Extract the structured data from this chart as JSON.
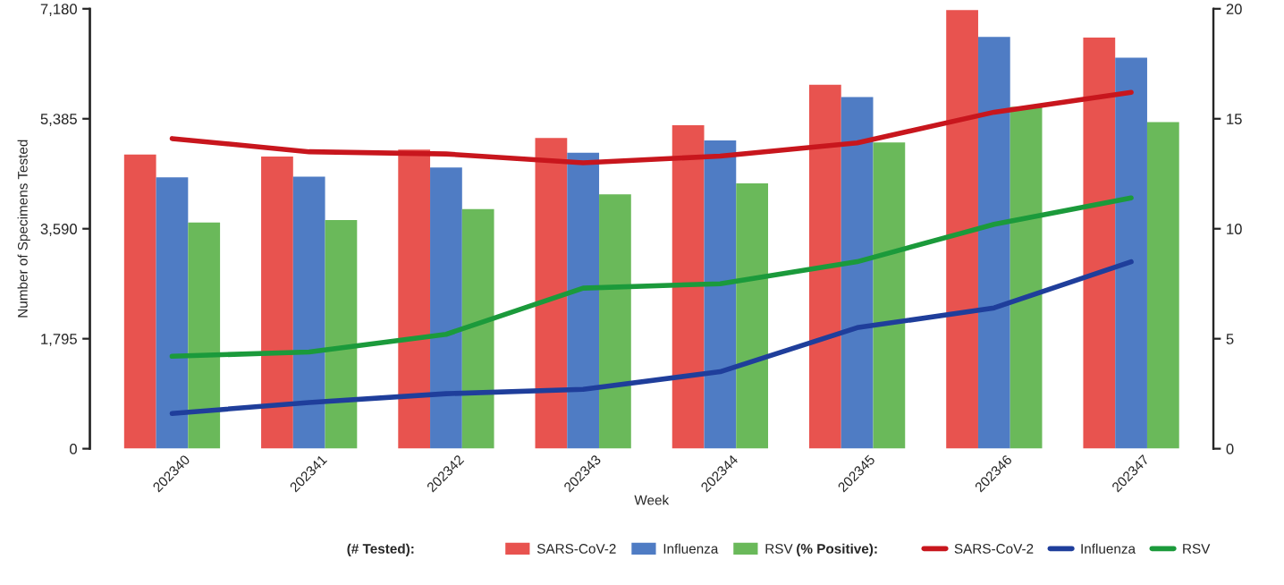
{
  "chart_data": {
    "type": "bar",
    "xlabel": "Week",
    "ylabel": "Number of Specimens Tested",
    "legend_title": "(# Tested):",
    "annotations": [
      "(% Positive):"
    ],
    "categories": [
      "202340",
      "202341",
      "202342",
      "202343",
      "202344",
      "202345",
      "202346",
      "202347"
    ],
    "series": [
      {
        "name": "SARS-CoV-2",
        "color": "#e8534f",
        "values": [
          4800,
          4770,
          4880,
          5070,
          5280,
          5940,
          7160,
          6710
        ]
      },
      {
        "name": "Influenza",
        "color": "#4f7cc4",
        "values": [
          4430,
          4440,
          4590,
          4830,
          5030,
          5740,
          6720,
          6380
        ]
      },
      {
        "name": "RSV",
        "color": "#6ab95a",
        "values": [
          3690,
          3730,
          3910,
          4150,
          4330,
          5000,
          5580,
          5330
        ]
      },
      {
        "name": "SARS-CoV-2",
        "type": "line",
        "axis": "y2",
        "color": "#c8161d",
        "values": [
          14.1,
          13.5,
          13.4,
          13.0,
          13.3,
          13.9,
          15.3,
          16.2
        ]
      },
      {
        "name": "Influenza",
        "type": "line",
        "axis": "y2",
        "color": "#1f3e9b",
        "values": [
          1.6,
          2.1,
          2.5,
          2.7,
          3.5,
          5.5,
          6.4,
          8.5
        ]
      },
      {
        "name": "RSV",
        "type": "line",
        "axis": "y2",
        "color": "#1b9a3b",
        "values": [
          4.2,
          4.4,
          5.2,
          7.3,
          7.5,
          8.5,
          10.2,
          11.4
        ]
      }
    ],
    "ylim": [
      0,
      7180
    ],
    "yticks": [
      0,
      {
        "value": 1795,
        "label": "1,795"
      },
      {
        "value": 3590,
        "label": "3,590"
      },
      {
        "value": 5385,
        "label": "5,385"
      },
      {
        "value": 7180,
        "label": "7,180"
      }
    ],
    "y2lim": [
      0,
      20
    ],
    "y2ticks": [
      0,
      5,
      10,
      15,
      20
    ],
    "grid": false,
    "legend": "bottom",
    "line_style": "solid",
    "marker": "none"
  }
}
